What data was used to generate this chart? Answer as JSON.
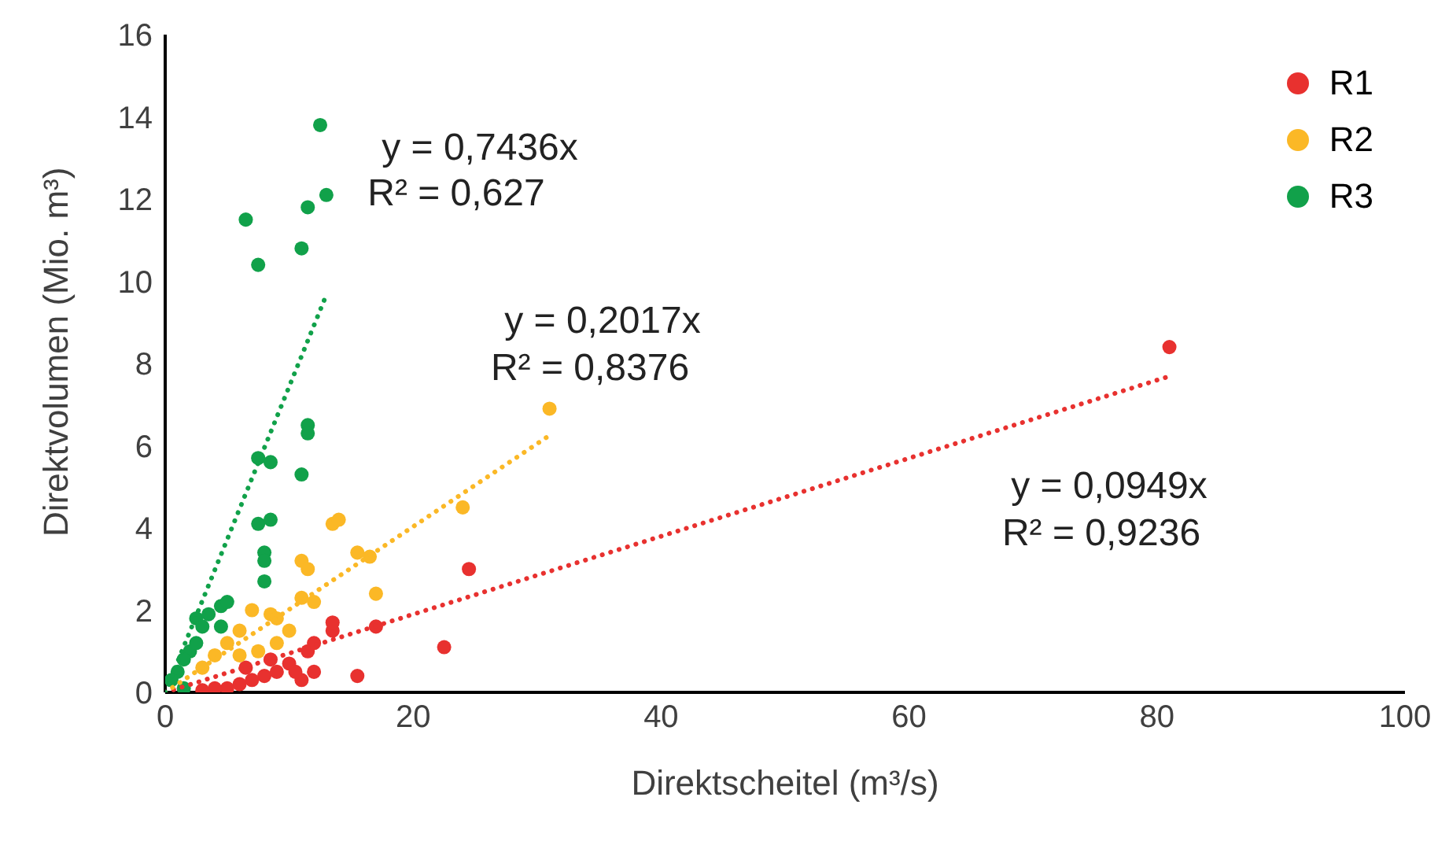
{
  "chart_data": {
    "type": "scatter",
    "xlabel": "Direktscheitel (m³/s)",
    "ylabel": "Direktvolumen (Mio. m³)",
    "xlim": [
      0,
      100
    ],
    "xticks": [
      0,
      20,
      40,
      60,
      80,
      100
    ],
    "ylim": [
      0,
      16
    ],
    "yticks": [
      0,
      2,
      4,
      6,
      8,
      10,
      12,
      14,
      16
    ],
    "grid": false,
    "legend": "top right",
    "series": [
      {
        "name": "R1",
        "color": "#e8312f",
        "marker": "circle",
        "x": [
          81,
          24.5,
          22.5,
          17,
          13.5,
          13.5,
          15.5,
          11.5,
          12,
          10,
          9,
          8,
          7,
          6,
          5,
          11,
          12,
          10.5,
          8.5,
          6.5,
          4,
          3
        ],
        "values": [
          8.4,
          3.0,
          1.1,
          1.6,
          1.5,
          1.7,
          0.4,
          1.0,
          1.2,
          0.7,
          0.5,
          0.4,
          0.3,
          0.2,
          0.1,
          0.3,
          0.5,
          0.5,
          0.8,
          0.6,
          0.1,
          0.05
        ]
      },
      {
        "name": "R2",
        "color": "#fbb826",
        "marker": "circle",
        "x": [
          31,
          24,
          13.5,
          14,
          11,
          11.5,
          15.5,
          16.5,
          17,
          12,
          11,
          8.5,
          9,
          7,
          6,
          5,
          4,
          3,
          9,
          10,
          6,
          7.5
        ],
        "values": [
          6.9,
          4.5,
          4.1,
          4.2,
          3.2,
          3.0,
          3.4,
          3.3,
          2.4,
          2.2,
          2.3,
          1.9,
          1.8,
          2.0,
          1.5,
          1.2,
          0.9,
          0.6,
          1.2,
          1.5,
          0.9,
          1.0
        ]
      },
      {
        "name": "R3",
        "color": "#11a14a",
        "marker": "circle",
        "x": [
          12.5,
          13,
          11.5,
          6.5,
          7.5,
          11,
          11.5,
          11.5,
          11,
          7.5,
          8.5,
          7.5,
          8.5,
          8,
          8,
          8,
          2.5,
          3.5,
          4.5,
          5,
          3,
          2,
          1.5,
          1,
          0.5,
          1.5,
          4.5,
          2.5
        ],
        "values": [
          13.8,
          12.1,
          11.8,
          11.5,
          10.4,
          10.8,
          6.5,
          6.3,
          5.3,
          5.7,
          5.6,
          4.1,
          4.2,
          3.4,
          3.2,
          2.7,
          1.8,
          1.9,
          2.1,
          2.2,
          1.6,
          1.0,
          0.8,
          0.5,
          0.3,
          0.1,
          1.6,
          1.2
        ]
      },
      {
        "type": "line",
        "color": "#e8312f",
        "line_style": "dotted",
        "marker": "none",
        "x": [
          0,
          81
        ],
        "values": [
          0,
          7.69
        ]
      },
      {
        "type": "line",
        "color": "#fbb826",
        "line_style": "dotted",
        "marker": "none",
        "x": [
          0,
          31
        ],
        "values": [
          0,
          6.25
        ]
      },
      {
        "type": "line",
        "color": "#11a14a",
        "line_style": "dotted",
        "marker": "none",
        "x": [
          0,
          13
        ],
        "values": [
          0,
          9.67
        ]
      }
    ],
    "annotations": [
      "y = 0,7436x",
      "R² = 0,627",
      "y = 0,2017x",
      "R² = 0,8376",
      "y = 0,0949x",
      "R² = 0,9236"
    ]
  }
}
